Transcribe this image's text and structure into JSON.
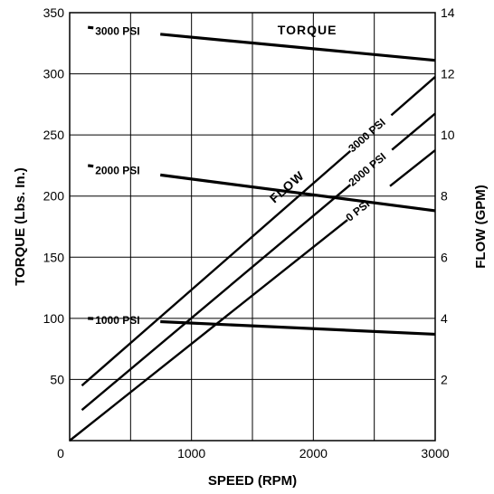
{
  "chart_data": {
    "type": "line",
    "x_axis": {
      "label": "SPEED (RPM)",
      "range": [
        0,
        3000
      ],
      "ticks": [
        0,
        1000,
        2000,
        3000
      ],
      "grid_step": 500
    },
    "y_left": {
      "label": "TORQUE (Lbs. In.)",
      "range": [
        0,
        350
      ],
      "ticks": [
        50,
        100,
        150,
        200,
        250,
        300,
        350
      ],
      "origin_label": "0"
    },
    "y_right": {
      "label": "FLOW (GPM)",
      "range": [
        0,
        14
      ],
      "ticks": [
        2,
        4,
        6,
        8,
        10,
        12,
        14
      ]
    },
    "grid": true,
    "torque_label": "TORQUE",
    "flow_label": "FLOW",
    "torque_series": [
      {
        "name": "3000 PSI",
        "x": [
          150,
          3000
        ],
        "y": [
          338,
          311
        ]
      },
      {
        "name": "2000 PSI",
        "x": [
          150,
          3000
        ],
        "y": [
          225,
          188
        ]
      },
      {
        "name": "1000 PSI",
        "x": [
          150,
          3000
        ],
        "y": [
          100,
          87
        ]
      }
    ],
    "flow_series": [
      {
        "name": "3000 PSI",
        "x": [
          100,
          3000
        ],
        "y": [
          1.8,
          11.9
        ]
      },
      {
        "name": "2000 PSI",
        "x": [
          100,
          3000
        ],
        "y": [
          1.0,
          10.7
        ]
      },
      {
        "name": "0 PSI",
        "x": [
          0,
          3000
        ],
        "y": [
          0.0,
          9.5
        ]
      }
    ]
  }
}
